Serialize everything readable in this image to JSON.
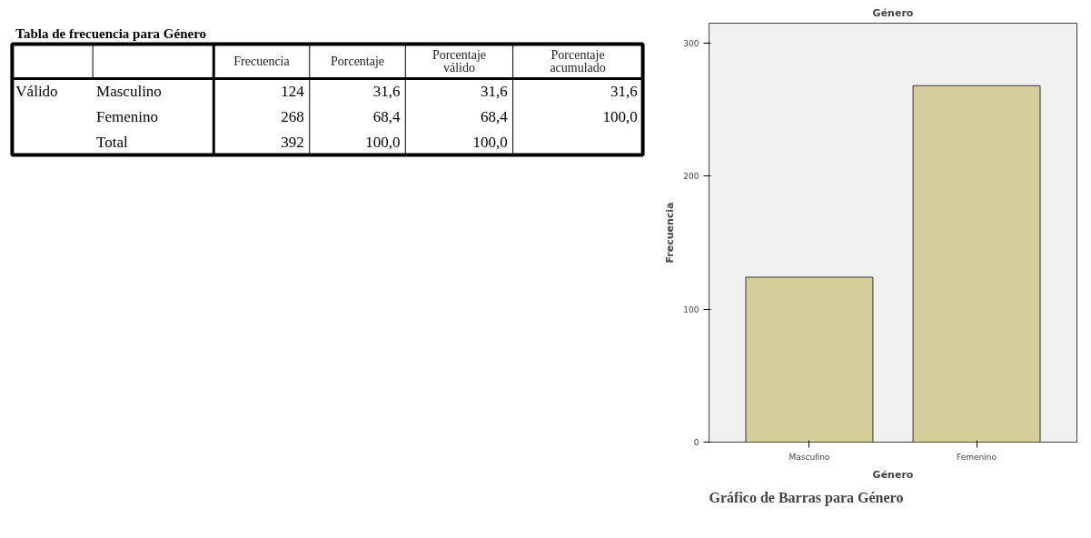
{
  "chart_data": {
    "type": "bar",
    "title": "Género",
    "xlabel": "Género",
    "ylabel": "Frecuencia",
    "categories": [
      "Masculino",
      "Femenino"
    ],
    "values": [
      124,
      268
    ],
    "color": "#d4cf98",
    "ylim": [
      0,
      315
    ],
    "yticks": [
      0,
      100,
      200,
      300
    ],
    "grid": false,
    "annotations": [
      "Tabla de frecuencia para Género",
      "Frecuencia",
      "Porcentaje",
      "Porcentaje válido",
      "Porcentaje acumulado",
      "Válido",
      "Masculino",
      "124",
      "31,6",
      "31,6",
      "31,6",
      "Femenino",
      "268",
      "68,4",
      "68,4",
      "100,0",
      "Total",
      "392",
      "100,0",
      "100,0",
      "Gráfico de Barras para Género"
    ]
  }
}
